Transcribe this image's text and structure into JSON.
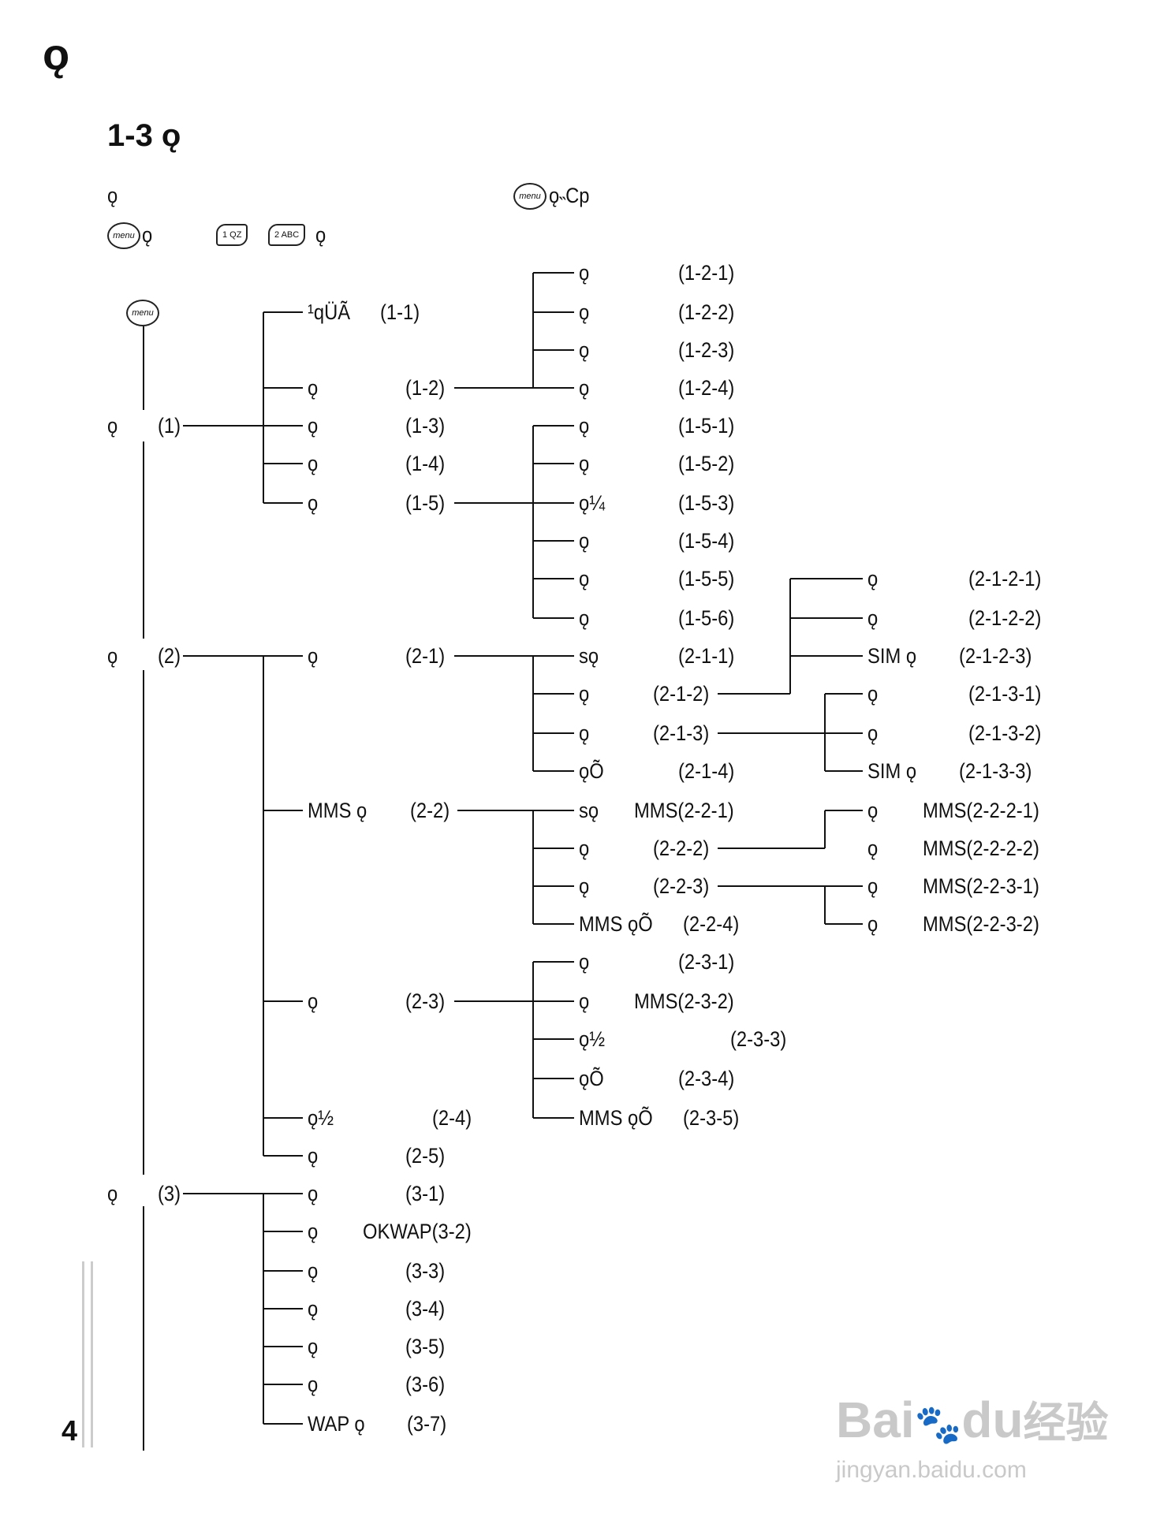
{
  "header": {
    "chapter_mark": "ǫ",
    "section_title": "1-3 ǫ",
    "instruction_line1_left": "ǫ׵",
    "instruction_line1_right": "ǫ˵Cp",
    "instruction_line2_left": "ǫ",
    "instruction_line2_right": "ǫ",
    "menu_key_label": "menu",
    "key1_label": "1 QZ",
    "key2_label": "2 ABC"
  },
  "page_number": "4",
  "tree": {
    "root_label": "menu",
    "level1": [
      {
        "label": "ǫ",
        "code": "(1)"
      },
      {
        "label": "ǫ",
        "code": "(2)"
      },
      {
        "label": "ǫ",
        "code": "(3)"
      }
    ],
    "group1": [
      {
        "label": "¹qÜÃ",
        "code": "(1-1)"
      },
      {
        "label": "ǫ",
        "code": "(1-2)"
      },
      {
        "label": "ǫ",
        "code": "(1-3)"
      },
      {
        "label": "ǫ",
        "code": "(1-4)"
      },
      {
        "label": "ǫ",
        "code": "(1-5)"
      }
    ],
    "group1_2": [
      {
        "label": "ǫ",
        "code": "(1-2-1)"
      },
      {
        "label": "ǫ",
        "code": "(1-2-2)"
      },
      {
        "label": "ǫ",
        "code": "(1-2-3)"
      },
      {
        "label": "ǫ",
        "code": "(1-2-4)"
      }
    ],
    "group1_5": [
      {
        "label": "ǫ",
        "code": "(1-5-1)"
      },
      {
        "label": "ǫ",
        "code": "(1-5-2)"
      },
      {
        "label": "ǫ¼",
        "code": "(1-5-3)"
      },
      {
        "label": "ǫ",
        "code": "(1-5-4)"
      },
      {
        "label": "ǫ",
        "code": "(1-5-5)"
      },
      {
        "label": "ǫ",
        "code": "(1-5-6)"
      }
    ],
    "group2": [
      {
        "label": "ǫ",
        "code": "(2-1)"
      },
      {
        "label": "MMS ǫ",
        "code": "(2-2)"
      },
      {
        "label": "ǫ",
        "code": "(2-3)"
      },
      {
        "label": "ǫ½",
        "code": "(2-4)"
      },
      {
        "label": "ǫ",
        "code": "(2-5)"
      }
    ],
    "group2_1": [
      {
        "label": "sǫ",
        "code": "(2-1-1)"
      },
      {
        "label": "ǫ",
        "code": "(2-1-2)"
      },
      {
        "label": "ǫ",
        "code": "(2-1-3)"
      },
      {
        "label": "ǫÕ",
        "code": "(2-1-4)"
      }
    ],
    "group2_1_2": [
      {
        "label": "ǫ",
        "code": "(2-1-2-1)"
      },
      {
        "label": "ǫ",
        "code": "(2-1-2-2)"
      },
      {
        "label": "SIM ǫ",
        "code": "(2-1-2-3)"
      }
    ],
    "group2_1_3": [
      {
        "label": "ǫ",
        "code": "(2-1-3-1)"
      },
      {
        "label": "ǫ",
        "code": "(2-1-3-2)"
      },
      {
        "label": "SIM ǫ",
        "code": "(2-1-3-3)"
      }
    ],
    "group2_2": [
      {
        "label": "sǫ",
        "code": "MMS(2-2-1)"
      },
      {
        "label": "ǫ",
        "code": "(2-2-2)"
      },
      {
        "label": "ǫ",
        "code": "(2-2-3)"
      },
      {
        "label": "MMS ǫÕ",
        "code": "(2-2-4)"
      }
    ],
    "group2_2_2": [
      {
        "label": "ǫ",
        "code": "MMS(2-2-2-1)"
      },
      {
        "label": "ǫ",
        "code": "MMS(2-2-2-2)"
      }
    ],
    "group2_2_3": [
      {
        "label": "ǫ",
        "code": "MMS(2-2-3-1)"
      },
      {
        "label": "ǫ",
        "code": "MMS(2-2-3-2)"
      }
    ],
    "group2_3": [
      {
        "label": "ǫ",
        "code": "(2-3-1)"
      },
      {
        "label": "ǫ",
        "code": "MMS(2-3-2)"
      },
      {
        "label": "ǫ½",
        "code": "(2-3-3)"
      },
      {
        "label": "ǫÕ",
        "code": "(2-3-4)"
      },
      {
        "label": "MMS ǫÕ",
        "code": "(2-3-5)"
      }
    ],
    "group3": [
      {
        "label": "ǫ",
        "code": "(3-1)"
      },
      {
        "label": "ǫ",
        "code": "OKWAP(3-2)"
      },
      {
        "label": "ǫ",
        "code": "(3-3)"
      },
      {
        "label": "ǫ",
        "code": "(3-4)"
      },
      {
        "label": "ǫ",
        "code": "(3-5)"
      },
      {
        "label": "ǫ",
        "code": "(3-6)"
      },
      {
        "label": "WAP ǫ",
        "code": "(3-7)"
      }
    ]
  },
  "watermark": {
    "brand": "Bai",
    "brand2": "du",
    "brand3": "经验",
    "url": "jingyan.baidu.com"
  }
}
